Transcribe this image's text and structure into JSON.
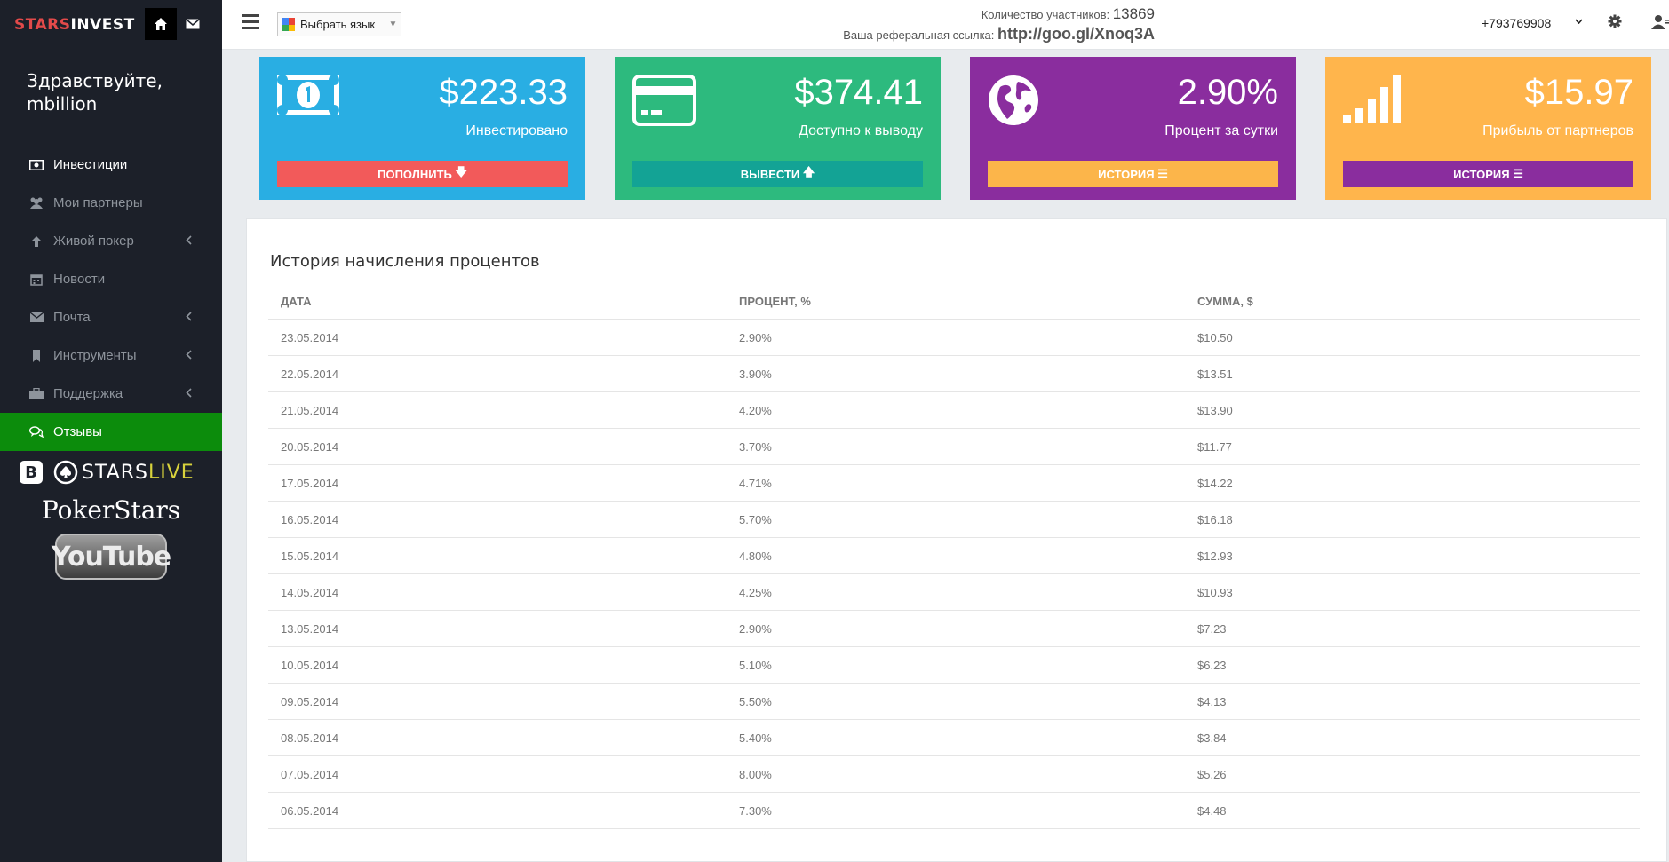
{
  "sidebar": {
    "brand_part1": "STARS",
    "brand_part2": "INVEST",
    "greeting_line1": "Здравствуйте,",
    "greeting_line2": "mbillion",
    "items": [
      {
        "label": "Инвестиции",
        "icon": "money-icon"
      },
      {
        "label": "Мои партнеры",
        "icon": "users-icon"
      },
      {
        "label": "Живой покер",
        "icon": "arrow-up-icon"
      },
      {
        "label": "Новости",
        "icon": "calendar-icon"
      },
      {
        "label": "Почта",
        "icon": "envelope-icon"
      },
      {
        "label": "Инструменты",
        "icon": "bookmark-icon"
      },
      {
        "label": "Поддержка",
        "icon": "briefcase-icon"
      },
      {
        "label": "Отзывы",
        "icon": "comments-icon"
      }
    ],
    "social": {
      "vk": "B",
      "starslive_part1": "STARS",
      "starslive_part2": "LIVE",
      "pokerstars": "PokerStars",
      "youtube": "YouTube"
    }
  },
  "header": {
    "language_select": "Выбрать язык",
    "participants_label": "Количество участников:",
    "participants_count": "13869",
    "referral_label": "Ваша реферальная ссылка:",
    "referral_link": "http://goo.gl/Xnoq3A",
    "phone": "+793769908"
  },
  "cards": [
    {
      "value": "$223.33",
      "label": "Инвестировано",
      "button": "ПОПОЛНИТЬ",
      "icon": "banknote-icon",
      "color": "#29aee3"
    },
    {
      "value": "$374.41",
      "label": "Доступно к выводу",
      "button": "ВЫВЕСТИ",
      "icon": "credit-card-icon",
      "color": "#2dba7e"
    },
    {
      "value": "2.90%",
      "label": "Процент за сутки",
      "button": "ИСТОРИЯ",
      "icon": "globe-icon",
      "color": "#8a2d9e"
    },
    {
      "value": "$15.97",
      "label": "Прибыль от партнеров",
      "button": "ИСТОРИЯ",
      "icon": "signal-bars-icon",
      "color": "#ffb54c"
    }
  ],
  "history": {
    "title": "История начисления процентов",
    "columns": [
      "ДАТА",
      "ПРОЦЕНТ, %",
      "СУММА, $"
    ],
    "rows": [
      [
        "23.05.2014",
        "2.90%",
        "$10.50"
      ],
      [
        "22.05.2014",
        "3.90%",
        "$13.51"
      ],
      [
        "21.05.2014",
        "4.20%",
        "$13.90"
      ],
      [
        "20.05.2014",
        "3.70%",
        "$11.77"
      ],
      [
        "17.05.2014",
        "4.71%",
        "$14.22"
      ],
      [
        "16.05.2014",
        "5.70%",
        "$16.18"
      ],
      [
        "15.05.2014",
        "4.80%",
        "$12.93"
      ],
      [
        "14.05.2014",
        "4.25%",
        "$10.93"
      ],
      [
        "13.05.2014",
        "2.90%",
        "$7.23"
      ],
      [
        "10.05.2014",
        "5.10%",
        "$6.23"
      ],
      [
        "09.05.2014",
        "5.50%",
        "$4.13"
      ],
      [
        "08.05.2014",
        "5.40%",
        "$3.84"
      ],
      [
        "07.05.2014",
        "8.00%",
        "$5.26"
      ],
      [
        "06.05.2014",
        "7.30%",
        "$4.48"
      ]
    ]
  }
}
